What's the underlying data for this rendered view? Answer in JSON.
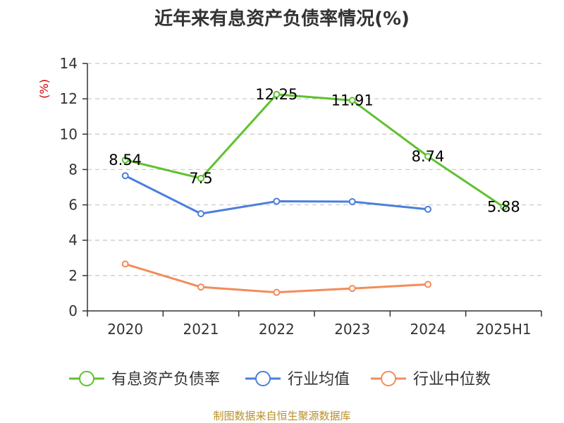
{
  "chart_data": {
    "type": "line",
    "title": "近年来有息资产负债率情况(%)",
    "ylabel": "(%)",
    "categories": [
      "2020",
      "2021",
      "2022",
      "2023",
      "2024",
      "2025H1"
    ],
    "ylim": [
      0,
      14
    ],
    "yticks": [
      0,
      2,
      4,
      6,
      8,
      10,
      12,
      14
    ],
    "grid": true,
    "legend_position": "bottom",
    "series": [
      {
        "name": "有息资产负债率",
        "color": "#5ec22e",
        "values": [
          8.54,
          7.5,
          12.25,
          11.91,
          8.74,
          5.88
        ],
        "labels": [
          "8.54",
          "7.5",
          "12.25",
          "11.91",
          "8.74",
          "5.88"
        ]
      },
      {
        "name": "行业均值",
        "color": "#4a7fdc",
        "values": [
          7.65,
          5.5,
          6.2,
          6.18,
          5.75,
          null
        ]
      },
      {
        "name": "行业中位数",
        "color": "#f28c5a",
        "values": [
          2.65,
          1.35,
          1.05,
          1.27,
          1.5,
          null
        ]
      }
    ]
  },
  "source": "制图数据来自恒生聚源数据库"
}
